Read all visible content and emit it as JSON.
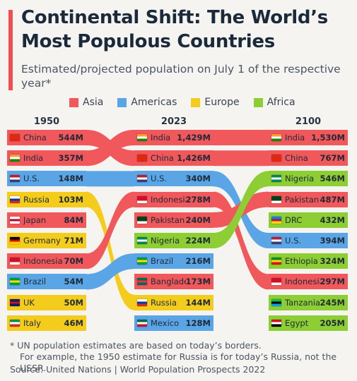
{
  "title": "Continental Shift: The World’s Most Populous Countries",
  "subtitle": "Estimated/projected population on July 1 of the respective year*",
  "colors": {
    "Asia": "#f0585c",
    "Americas": "#5aa5e6",
    "Europe": "#f4cc1c",
    "Africa": "#8cce33",
    "accent": "#ef4f53"
  },
  "legend": [
    {
      "region": "Asia",
      "label": "Asia"
    },
    {
      "region": "Americas",
      "label": "Americas"
    },
    {
      "region": "Europe",
      "label": "Europe"
    },
    {
      "region": "Africa",
      "label": "Africa"
    }
  ],
  "footnote": [
    "* UN population estimates are based on today’s borders.",
    "For example, the 1950 estimate for Russia is for today’s Russia, not the USSR."
  ],
  "source": "Source: United Nations | World Population Prospects 2022",
  "chart_data": {
    "type": "bump",
    "title": "Continental Shift: The World’s Most Populous Countries",
    "subtitle": "Estimated/projected population on July 1 of the respective year*",
    "years": [
      "1950",
      "2023",
      "2100"
    ],
    "unit": "M",
    "columns": [
      {
        "year": "1950",
        "rows": [
          {
            "country": "China",
            "value": "544M",
            "region": "Asia"
          },
          {
            "country": "India",
            "value": "357M",
            "region": "Asia"
          },
          {
            "country": "U.S.",
            "value": "148M",
            "region": "Americas"
          },
          {
            "country": "Russia",
            "value": "103M",
            "region": "Europe"
          },
          {
            "country": "Japan",
            "value": "84M",
            "region": "Asia"
          },
          {
            "country": "Germany",
            "value": "71M",
            "region": "Europe"
          },
          {
            "country": "Indonesia",
            "value": "70M",
            "region": "Asia"
          },
          {
            "country": "Brazil",
            "value": "54M",
            "region": "Americas"
          },
          {
            "country": "UK",
            "value": "50M",
            "region": "Europe"
          },
          {
            "country": "Italy",
            "value": "46M",
            "region": "Europe"
          }
        ]
      },
      {
        "year": "2023",
        "rows": [
          {
            "country": "India",
            "value": "1,429M",
            "region": "Asia"
          },
          {
            "country": "China",
            "value": "1,426M",
            "region": "Asia"
          },
          {
            "country": "U.S.",
            "value": "340M",
            "region": "Americas"
          },
          {
            "country": "Indonesia",
            "value": "278M",
            "region": "Asia"
          },
          {
            "country": "Pakistan",
            "value": "240M",
            "region": "Asia"
          },
          {
            "country": "Nigeria",
            "value": "224M",
            "region": "Africa"
          },
          {
            "country": "Brazil",
            "value": "216M",
            "region": "Americas"
          },
          {
            "country": "Bangladesh",
            "value": "173M",
            "region": "Asia"
          },
          {
            "country": "Russia",
            "value": "144M",
            "region": "Europe"
          },
          {
            "country": "Mexico",
            "value": "128M",
            "region": "Americas"
          }
        ]
      },
      {
        "year": "2100",
        "rows": [
          {
            "country": "India",
            "value": "1,530M",
            "region": "Asia"
          },
          {
            "country": "China",
            "value": "767M",
            "region": "Asia"
          },
          {
            "country": "Nigeria",
            "value": "546M",
            "region": "Africa"
          },
          {
            "country": "Pakistan",
            "value": "487M",
            "region": "Asia"
          },
          {
            "country": "DRC",
            "value": "432M",
            "region": "Africa"
          },
          {
            "country": "U.S.",
            "value": "394M",
            "region": "Americas"
          },
          {
            "country": "Ethiopia",
            "value": "324M",
            "region": "Africa"
          },
          {
            "country": "Indonesia",
            "value": "297M",
            "region": "Asia"
          },
          {
            "country": "Tanzania",
            "value": "245M",
            "region": "Africa"
          },
          {
            "country": "Egypt",
            "value": "205M",
            "region": "Africa"
          }
        ]
      }
    ]
  }
}
